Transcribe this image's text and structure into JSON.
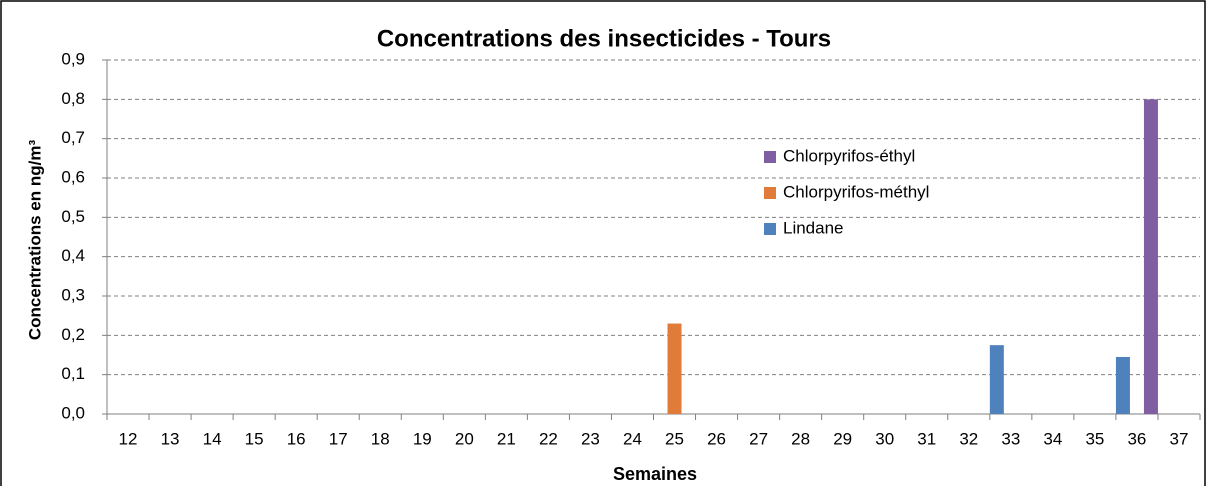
{
  "chart_data": {
    "type": "bar",
    "title": "Concentrations des insecticides -  Tours",
    "x_label": "Semaines",
    "y_label": "Concentrations en ng/m³",
    "categories": [
      "12",
      "13",
      "14",
      "15",
      "16",
      "17",
      "18",
      "19",
      "20",
      "21",
      "22",
      "23",
      "24",
      "25",
      "26",
      "27",
      "28",
      "29",
      "30",
      "31",
      "32",
      "33",
      "34",
      "35",
      "36",
      "37"
    ],
    "series": [
      {
        "name": "Lindane",
        "color": "#4f81bd",
        "values": [
          null,
          null,
          null,
          null,
          null,
          null,
          null,
          null,
          null,
          null,
          null,
          null,
          null,
          null,
          null,
          null,
          null,
          null,
          null,
          null,
          null,
          0.175,
          null,
          null,
          0.145,
          null
        ]
      },
      {
        "name": "Chlorpyrifos-méthyl",
        "color": "#e07b39",
        "values": [
          null,
          null,
          null,
          null,
          null,
          null,
          null,
          null,
          null,
          null,
          null,
          null,
          null,
          0.23,
          null,
          null,
          null,
          null,
          null,
          null,
          null,
          null,
          null,
          null,
          null,
          null
        ]
      },
      {
        "name": "Chlorpyrifos-éthyl",
        "color": "#7f5fa2",
        "values": [
          null,
          null,
          null,
          null,
          null,
          null,
          null,
          null,
          null,
          null,
          null,
          null,
          null,
          null,
          null,
          null,
          null,
          null,
          null,
          null,
          null,
          null,
          null,
          null,
          0.8,
          null
        ]
      }
    ],
    "ylim": [
      0,
      0.9
    ],
    "yticks": [
      {
        "value": 0,
        "label": "0,0"
      },
      {
        "value": 0.1,
        "label": "0,1"
      },
      {
        "value": 0.2,
        "label": "0,2"
      },
      {
        "value": 0.3,
        "label": "0,3"
      },
      {
        "value": 0.4,
        "label": "0,4"
      },
      {
        "value": 0.5,
        "label": "0,5"
      },
      {
        "value": 0.6,
        "label": "0,6"
      },
      {
        "value": 0.7,
        "label": "0,7"
      },
      {
        "value": 0.8,
        "label": "0,8"
      },
      {
        "value": 0.9,
        "label": "0,9"
      }
    ],
    "grid": true
  }
}
